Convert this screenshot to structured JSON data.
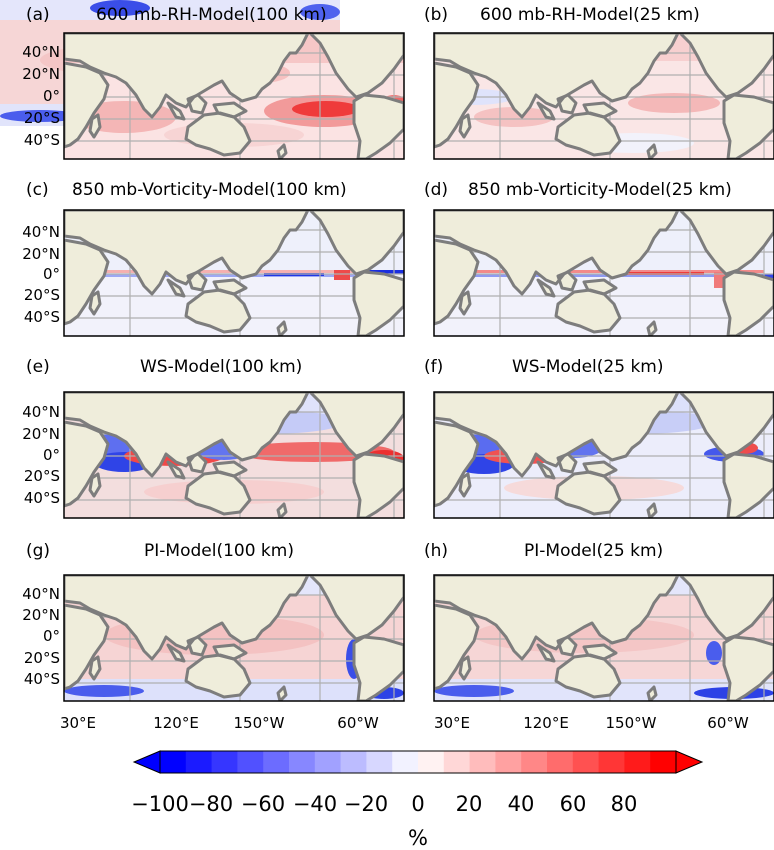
{
  "panels": [
    {
      "letter": "(a)",
      "title": "600 mb-RH-Model(100 km)"
    },
    {
      "letter": "(b)",
      "title": "600 mb-RH-Model(25 km)"
    },
    {
      "letter": "(c)",
      "title": "850 mb-Vorticity-Model(100 km)"
    },
    {
      "letter": "(d)",
      "title": "850 mb-Vorticity-Model(25 km)"
    },
    {
      "letter": "(e)",
      "title": "WS-Model(100 km)"
    },
    {
      "letter": "(f)",
      "title": "WS-Model(25 km)"
    },
    {
      "letter": "(g)",
      "title": "PI-Model(100 km)"
    },
    {
      "letter": "(h)",
      "title": "PI-Model(25 km)"
    }
  ],
  "lat_labels": [
    "40°N",
    "20°N",
    "0°",
    "20°S",
    "40°S"
  ],
  "lon_labels": [
    "30°E",
    "120°E",
    "150°W",
    "60°W"
  ],
  "colorbar": {
    "ticks": [
      "−100",
      "−80",
      "−60",
      "−40",
      "−20",
      "0",
      "20",
      "40",
      "60",
      "80"
    ],
    "unit": "%",
    "min": -100,
    "max": 100,
    "step": 10
  },
  "colors": {
    "land": "#efeddb",
    "coast": "#7d7d7d",
    "grid": "#b0b0b0",
    "neg_extreme": "#0000ff",
    "pos_extreme": "#ff0000"
  }
}
